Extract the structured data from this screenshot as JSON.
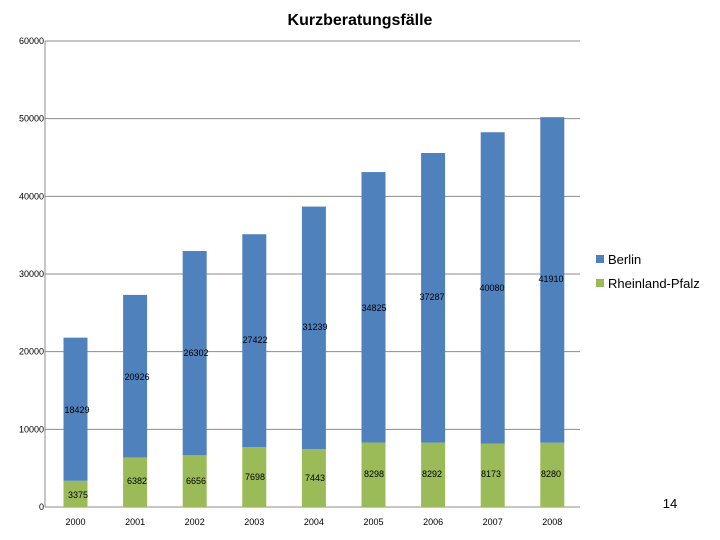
{
  "chart_data": {
    "type": "bar",
    "stacked": true,
    "title": "Kurzberatungsfälle",
    "xlabel": "",
    "ylabel": "",
    "ylim": [
      0,
      60000
    ],
    "yticks": [
      0,
      10000,
      20000,
      30000,
      40000,
      50000,
      60000
    ],
    "categories": [
      "2000",
      "2001",
      "2002",
      "2003",
      "2004",
      "2005",
      "2006",
      "2007",
      "2008"
    ],
    "series": [
      {
        "name": "Rheinland-Pfalz",
        "color": "#9bbb59",
        "values": [
          3375,
          6382,
          6656,
          7698,
          7443,
          8298,
          8292,
          8173,
          8280
        ],
        "labels": [
          "3375",
          "6382",
          "6656",
          "7698",
          "7443",
          "8298",
          "8292",
          "8173",
          "8280"
        ]
      },
      {
        "name": "Berlin",
        "color": "#4f81bd",
        "values": [
          18429,
          20926,
          26302,
          27422,
          31239,
          34825,
          37287,
          40080,
          41910
        ],
        "labels": [
          "18429",
          "20926",
          "26302",
          "27422",
          "31239",
          "34825",
          "37287",
          "40080",
          "41910"
        ]
      }
    ],
    "grid": "horizontal",
    "legend_position": "right"
  },
  "page_number": "14"
}
